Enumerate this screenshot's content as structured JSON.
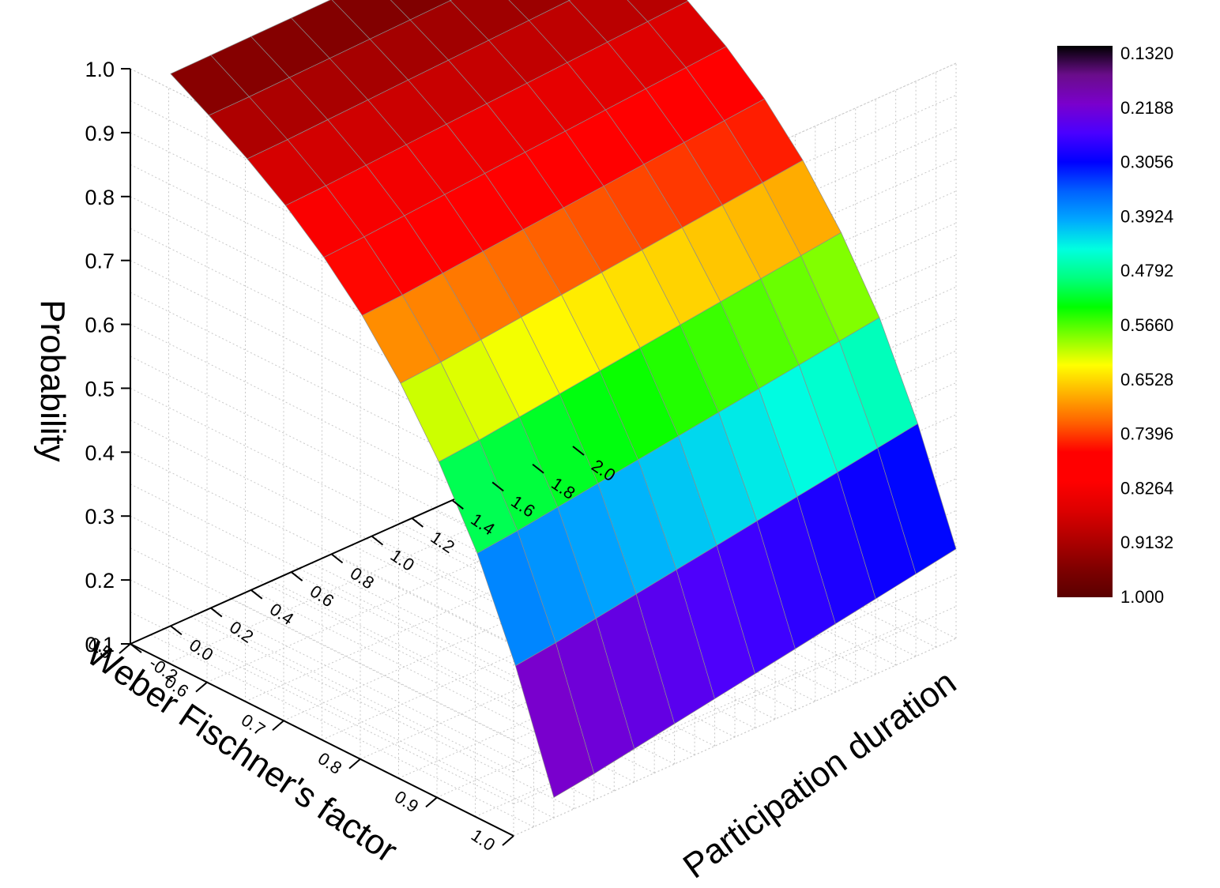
{
  "chart_data": {
    "type": "surface3d",
    "title": "",
    "axes": {
      "x": {
        "label": "Weber Fischner's factor",
        "ticks": [
          "0.5",
          "0.6",
          "0.7",
          "0.8",
          "0.9",
          "1.0"
        ],
        "range": [
          0.5,
          1.0
        ]
      },
      "y": {
        "label": "Participation duration",
        "ticks": [
          "-0.2",
          "0.0",
          "0.2",
          "0.4",
          "0.6",
          "0.8",
          "1.0",
          "1.2",
          "1.4",
          "1.6",
          "1.8",
          "2.0"
        ],
        "range": [
          -0.2,
          2.0
        ]
      },
      "z": {
        "label": "Probability",
        "ticks": [
          "0.1",
          "0.2",
          "0.3",
          "0.4",
          "0.5",
          "0.6",
          "0.7",
          "0.8",
          "0.9",
          "1.0"
        ],
        "range": [
          0.1,
          1.0
        ]
      }
    },
    "grid": true,
    "surface": {
      "weber_factor": [
        0.5,
        0.55,
        0.6,
        0.65,
        0.7,
        0.75,
        0.8,
        0.85,
        0.9,
        0.95,
        1.0
      ],
      "participation_duration": [
        0.0,
        0.2,
        0.4,
        0.6,
        0.8,
        1.0,
        1.2,
        1.4,
        1.6,
        1.8,
        2.0
      ],
      "probability": [
        [
          0.964,
          0.965,
          0.966,
          0.967,
          0.968,
          0.969,
          0.97,
          0.971,
          0.972,
          0.973,
          0.974
        ],
        [
          0.929,
          0.93,
          0.932,
          0.934,
          0.936,
          0.938,
          0.94,
          0.942,
          0.944,
          0.946,
          0.948
        ],
        [
          0.891,
          0.893,
          0.896,
          0.899,
          0.902,
          0.905,
          0.908,
          0.911,
          0.914,
          0.917,
          0.92
        ],
        [
          0.848,
          0.851,
          0.855,
          0.859,
          0.863,
          0.867,
          0.871,
          0.875,
          0.879,
          0.883,
          0.887
        ],
        [
          0.797,
          0.801,
          0.806,
          0.811,
          0.816,
          0.821,
          0.826,
          0.831,
          0.836,
          0.841,
          0.846
        ],
        [
          0.736,
          0.74,
          0.746,
          0.752,
          0.758,
          0.764,
          0.77,
          0.776,
          0.782,
          0.788,
          0.794
        ],
        [
          0.66,
          0.665,
          0.672,
          0.679,
          0.686,
          0.693,
          0.7,
          0.707,
          0.714,
          0.721,
          0.728
        ],
        [
          0.567,
          0.573,
          0.581,
          0.589,
          0.597,
          0.605,
          0.613,
          0.621,
          0.629,
          0.637,
          0.645
        ],
        [
          0.454,
          0.461,
          0.47,
          0.479,
          0.488,
          0.497,
          0.506,
          0.515,
          0.524,
          0.533,
          0.542
        ],
        [
          0.308,
          0.316,
          0.326,
          0.336,
          0.346,
          0.356,
          0.366,
          0.376,
          0.386,
          0.396,
          0.406
        ],
        [
          0.132,
          0.141,
          0.152,
          0.163,
          0.174,
          0.185,
          0.196,
          0.207,
          0.218,
          0.229,
          0.24
        ]
      ]
    },
    "colorbar": {
      "labels": [
        "0.1320",
        "0.2188",
        "0.3056",
        "0.3924",
        "0.4792",
        "0.5660",
        "0.6528",
        "0.7396",
        "0.8264",
        "0.9132",
        "1.000"
      ],
      "colors_top_to_bottom": [
        "#000000",
        "#6a0d8a",
        "#7a00cc",
        "#4a00ff",
        "#0000ff",
        "#0060ff",
        "#00a8ff",
        "#00ffe0",
        "#00ff80",
        "#00ff00",
        "#80ff00",
        "#ffff00",
        "#ffb000",
        "#ff6000",
        "#ff0000",
        "#ff0000",
        "#dd0000",
        "#b00000",
        "#800000",
        "#5a0000"
      ]
    }
  }
}
